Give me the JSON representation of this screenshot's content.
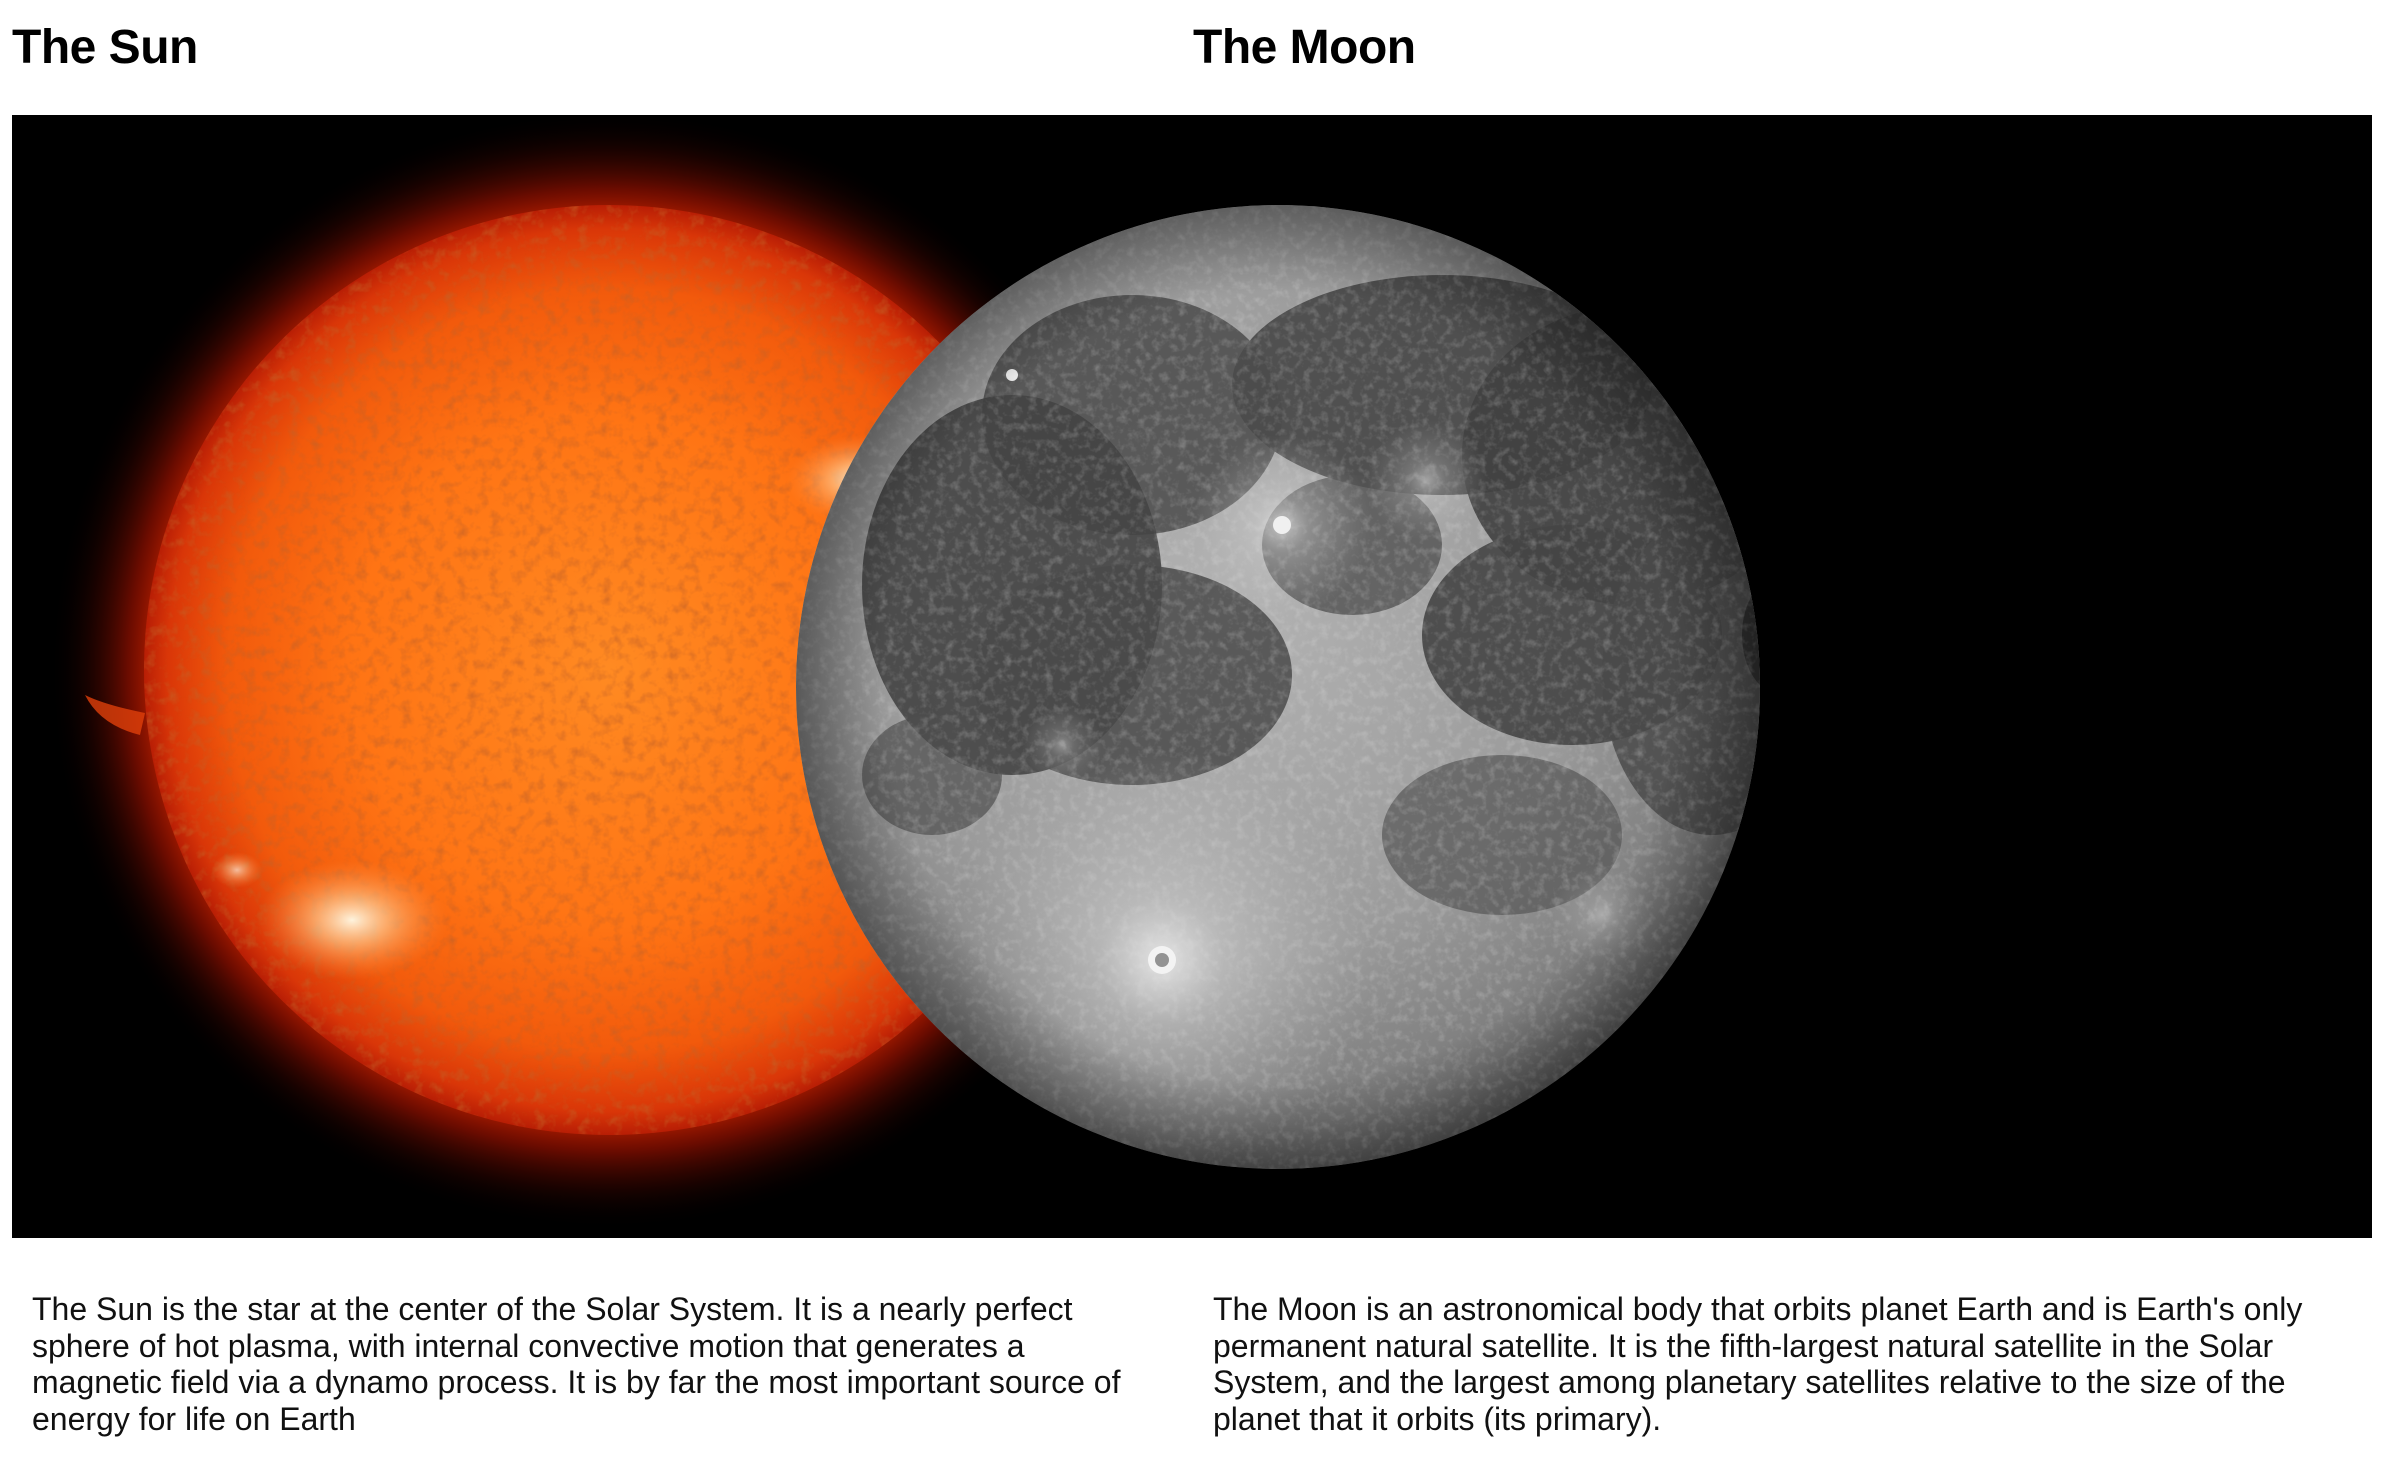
{
  "sun": {
    "title": "The Sun",
    "description": "The Sun is the star at the center of the Solar System. It is a nearly perfect sphere of hot plasma, with internal convective motion that generates a magnetic field via a dynamo process. It is by far the most important source of energy for life on Earth"
  },
  "moon": {
    "title": "The Moon",
    "description": "The Moon is an astronomical body that orbits planet Earth and is Earth's only permanent natural satellite. It is the fifth-largest natural satellite in the Solar System, and the largest among planetary satellites relative to the size of the planet that it orbits (its primary)."
  },
  "colors": {
    "page_background": "#ffffff",
    "image_background": "#000000",
    "sun_core": "#ff7a1a",
    "sun_limb": "#c41a05",
    "moon_highland": "#9a9a9a",
    "moon_mare": "#3f3f3f"
  }
}
